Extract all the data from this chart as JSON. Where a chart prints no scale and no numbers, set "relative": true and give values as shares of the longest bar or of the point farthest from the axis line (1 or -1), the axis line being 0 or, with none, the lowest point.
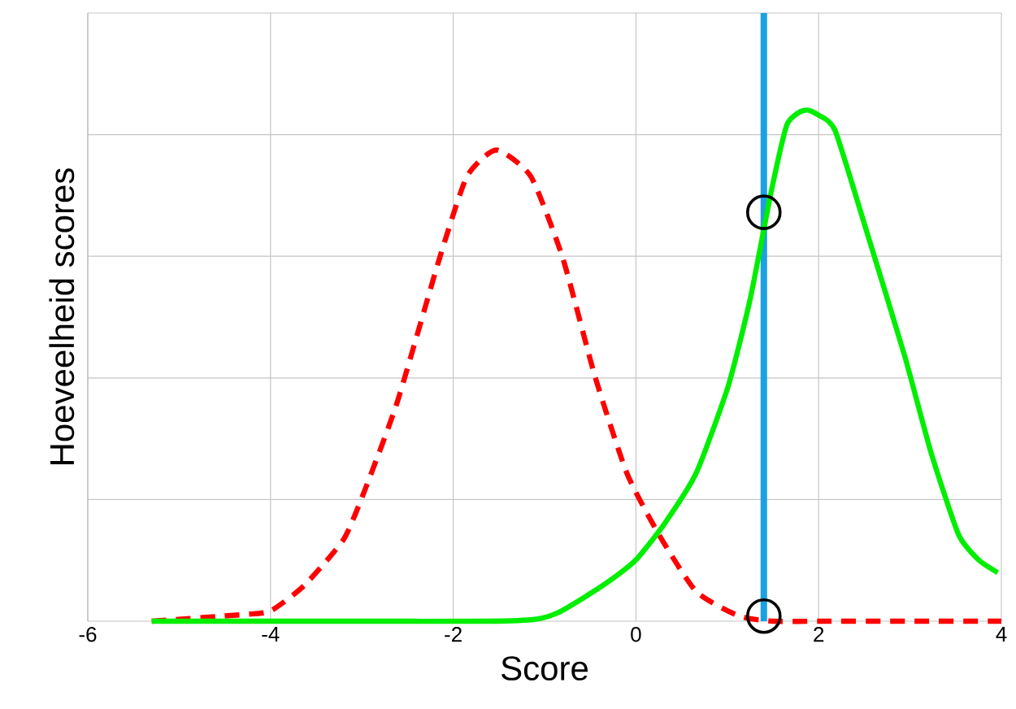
{
  "chart_data": {
    "type": "line",
    "xlabel": "Score",
    "ylabel": "Hoeveelheid scores",
    "relative": true,
    "xlim": [
      -6,
      4
    ],
    "xticks": [
      -6,
      -4,
      -2,
      0,
      2,
      4
    ],
    "grid": true,
    "series": [
      {
        "color": "#ff0000",
        "line_style": "dashed",
        "x": [
          -5.3,
          -4.3,
          -4,
          -3.63,
          -3.2,
          -2.96,
          -2.61,
          -2.15,
          -1.85,
          -1.53,
          -1.15,
          -0.8,
          -0.45,
          -0.1,
          0.25,
          0.66,
          1.13,
          1.5,
          2,
          3,
          4
        ],
        "values": [
          0,
          0.013,
          0.02,
          0.07,
          0.16,
          0.26,
          0.43,
          0.71,
          0.87,
          0.922,
          0.87,
          0.71,
          0.48,
          0.29,
          0.17,
          0.058,
          0.01,
          0,
          0,
          0,
          0
        ]
      },
      {
        "color": "#00ee00",
        "line_style": "solid",
        "x": [
          -5.3,
          -3,
          -1.6,
          -1.09,
          -0.86,
          -0.58,
          -0.28,
          0,
          0.31,
          0.66,
          1.01,
          1.25,
          1.48,
          1.65,
          1.78,
          1.88,
          2.0,
          2.18,
          2.53,
          2.94,
          3.23,
          3.53,
          3.75,
          3.96
        ],
        "values": [
          0,
          0,
          0,
          0.004,
          0.016,
          0.045,
          0.08,
          0.12,
          0.19,
          0.29,
          0.46,
          0.63,
          0.84,
          0.97,
          0.995,
          1,
          0.99,
          0.96,
          0.76,
          0.52,
          0.33,
          0.17,
          0.12,
          0.095
        ]
      },
      {
        "type": "scatter",
        "marker": "circle",
        "color": "#000000",
        "x": [
          1.4,
          1.4
        ],
        "values": [
          0.8,
          0.01
        ]
      }
    ],
    "ref_lines": [
      {
        "axis": "x",
        "value": 1.4,
        "color": "#1ba1e2"
      }
    ]
  }
}
